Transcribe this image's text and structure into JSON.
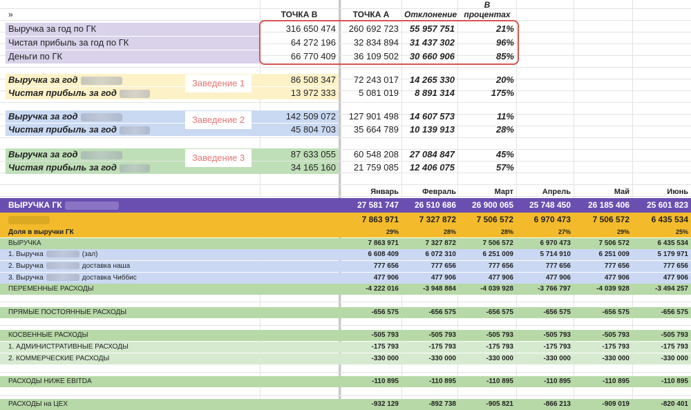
{
  "header": {
    "corner": "»",
    "point_b": "ТОЧКА В",
    "point_a": "ТОЧКА А",
    "deviation": "Отклонение",
    "percent_l1": "В",
    "percent_l2": "процентах"
  },
  "summary_rows": [
    {
      "label": "Выручка за год по ГК",
      "b": "316 650 474",
      "a": "260 692 723",
      "dev": "55 957 751",
      "pct": "21%"
    },
    {
      "label": "Чистая прибыль за год по ГК",
      "b": "64 272 196",
      "a": "32 834 894",
      "dev": "31 437 302",
      "pct": "96%"
    },
    {
      "label": "Деньги по ГК",
      "b": "66 770 409",
      "a": "36 109 502",
      "dev": "30 660 906",
      "pct": "85%"
    }
  ],
  "venues": [
    {
      "tag": "Заведение 1",
      "rows": [
        {
          "label": "Выручка за год",
          "b": "86 508 347",
          "a": "72 243 017",
          "dev": "14 265 330",
          "pct": "20%"
        },
        {
          "label": "Чистая прибыль за год",
          "b": "13 972 333",
          "a": "5 081 019",
          "dev": "8 891 314",
          "pct": "175%"
        }
      ]
    },
    {
      "tag": "Заведение 2",
      "rows": [
        {
          "label": "Выручка за год",
          "b": "142 509 072",
          "a": "127 901 498",
          "dev": "14 607 573",
          "pct": "11%"
        },
        {
          "label": "Чистая прибыль за год",
          "b": "45 804 703",
          "a": "35 664 789",
          "dev": "10 139 913",
          "pct": "28%"
        }
      ]
    },
    {
      "tag": "Заведение 3",
      "rows": [
        {
          "label": "Выручка за год",
          "b": "87 633 055",
          "a": "60 548 208",
          "dev": "27 084 847",
          "pct": "45%"
        },
        {
          "label": "Чистая прибыль за год",
          "b": "34 165 160",
          "a": "21 759 085",
          "dev": "12 406 075",
          "pct": "57%"
        }
      ]
    }
  ],
  "months": [
    "Январь",
    "Февраль",
    "Март",
    "Апрель",
    "Май",
    "Июнь"
  ],
  "revenue_gk": {
    "label": "ВЫРУЧКА ГК",
    "values": [
      "27 581 747",
      "26 510 686",
      "26 900 065",
      "25 748 450",
      "26 185 406",
      "25 601 823"
    ]
  },
  "venue_total": {
    "values": [
      "7 863 971",
      "7 327 872",
      "7 506 572",
      "6 970 473",
      "7 506 572",
      "6 435 534"
    ]
  },
  "share": {
    "label": "Доля в выручки ГК",
    "values": [
      "29%",
      "28%",
      "28%",
      "27%",
      "29%",
      "25%"
    ]
  },
  "detail_rows": [
    {
      "label": "ВЫРУЧКА",
      "values": [
        "7 863 971",
        "7 327 872",
        "7 506 572",
        "6 970 473",
        "7 506 572",
        "6 435 534"
      ]
    },
    {
      "label_pre": "1. Выручка",
      "label_post": "(зал)",
      "values": [
        "6 608 409",
        "6 072 310",
        "6 251 009",
        "5 714 910",
        "6 251 009",
        "5 179 971"
      ]
    },
    {
      "label_pre": "2. Выручка",
      "label_post": "доставка наша",
      "values": [
        "777 656",
        "777 656",
        "777 656",
        "777 656",
        "777 656",
        "777 656"
      ]
    },
    {
      "label_pre": "3. Выручка",
      "label_post": "доставка Чиббис",
      "values": [
        "477 906",
        "477 906",
        "477 906",
        "477 906",
        "477 906",
        "477 906"
      ]
    },
    {
      "label": "ПЕРЕМЕННЫЕ РАСХОДЫ",
      "values": [
        "-4 222 016",
        "-3 948 884",
        "-4 039 928",
        "-3 766 797",
        "-4 039 928",
        "-3 494 257"
      ]
    },
    {
      "label": "ПРЯМЫЕ ПОСТОЯННЫЕ РАСХОДЫ",
      "values": [
        "-656 575",
        "-656 575",
        "-656 575",
        "-656 575",
        "-656 575",
        "-656 575"
      ]
    },
    {
      "label": "КОСВЕННЫЕ РАСХОДЫ",
      "values": [
        "-505 793",
        "-505 793",
        "-505 793",
        "-505 793",
        "-505 793",
        "-505 793"
      ]
    },
    {
      "label": "1. АДМИНИСТРАТИВНЫЕ РАСХОДЫ",
      "values": [
        "-175 793",
        "-175 793",
        "-175 793",
        "-175 793",
        "-175 793",
        "-175 793"
      ]
    },
    {
      "label": "2. КОММЕРЧЕСКИЕ РАСХОДЫ",
      "values": [
        "-330 000",
        "-330 000",
        "-330 000",
        "-330 000",
        "-330 000",
        "-330 000"
      ]
    },
    {
      "label": "РАСХОДЫ НИЖЕ EBITDA",
      "values": [
        "-110 895",
        "-110 895",
        "-110 895",
        "-110 895",
        "-110 895",
        "-110 895"
      ]
    },
    {
      "label": "РАСХОДЫ на ЦЕХ",
      "values": [
        "-932 129",
        "-892 738",
        "-905 821",
        "-866 213",
        "-909 019",
        "-820 401"
      ]
    }
  ],
  "colors": {
    "purple_light": "#d9d2ea",
    "yellow_light": "#fdf1c8",
    "blue_light": "#c9d9f2",
    "green_light": "#bfdfb8",
    "purple_dark": "#6a4fb0",
    "orange": "#f3bb2b",
    "green_mid": "#b7d9a8",
    "blue_mid": "#cad8f3",
    "highlight": "#d9534f"
  }
}
